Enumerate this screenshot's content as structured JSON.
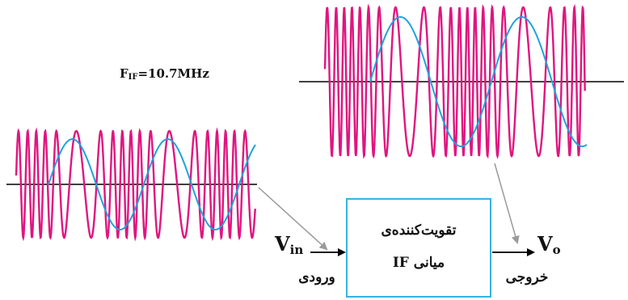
{
  "diagram": {
    "freq_label": {
      "main": "F",
      "sub": "IF",
      "rest": "=10.7MHz"
    },
    "amplifier": {
      "line1": "تقویت‌کننده‌ی",
      "line2": "میانی IF"
    },
    "input": {
      "symbol": "V",
      "sub": "in",
      "caption": "ورودی"
    },
    "output": {
      "symbol": "V",
      "sub": "o",
      "caption": "خروجی"
    }
  },
  "colors": {
    "carrier": "#e0157f",
    "modulating": "#1fa3dc",
    "box_border": "#34b4e4",
    "axis": "#000000",
    "pointer": "#9a9a9a"
  }
}
